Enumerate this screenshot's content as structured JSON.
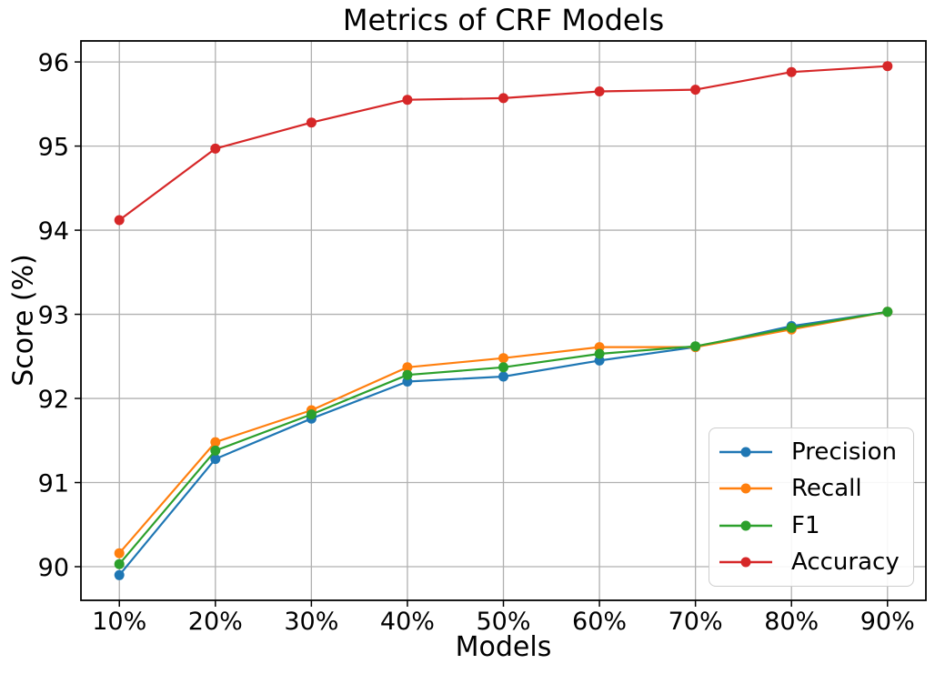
{
  "figure": {
    "background": "#ffffff",
    "text_color": "#000000"
  },
  "chart_data": {
    "type": "line",
    "title": "Metrics of CRF Models",
    "xlabel": "Models",
    "ylabel": "Score (%)",
    "categories": [
      "10%",
      "20%",
      "30%",
      "40%",
      "50%",
      "60%",
      "70%",
      "80%",
      "90%"
    ],
    "series": [
      {
        "name": "Precision",
        "color": "#1f77b4",
        "values": [
          89.9,
          91.28,
          91.76,
          92.2,
          92.26,
          92.45,
          92.61,
          92.86,
          93.03
        ]
      },
      {
        "name": "Recall",
        "color": "#ff7f0e",
        "values": [
          90.16,
          91.48,
          91.86,
          92.37,
          92.48,
          92.61,
          92.61,
          92.82,
          93.03
        ]
      },
      {
        "name": "F1",
        "color": "#2ca02c",
        "values": [
          90.03,
          91.38,
          91.81,
          92.28,
          92.37,
          92.53,
          92.62,
          92.84,
          93.03
        ]
      },
      {
        "name": "Accuracy",
        "color": "#d62728",
        "values": [
          94.12,
          94.97,
          95.28,
          95.55,
          95.57,
          95.65,
          95.67,
          95.88,
          95.95
        ]
      }
    ],
    "yticks": [
      90,
      91,
      92,
      93,
      94,
      95,
      96
    ],
    "ylim": [
      89.6,
      96.25
    ],
    "xlim": [
      -0.4,
      8.4
    ],
    "grid": true,
    "grid_color": "#b0b0b0",
    "axis_color": "#000000",
    "marker": "circle",
    "legend_position": "lower right"
  }
}
